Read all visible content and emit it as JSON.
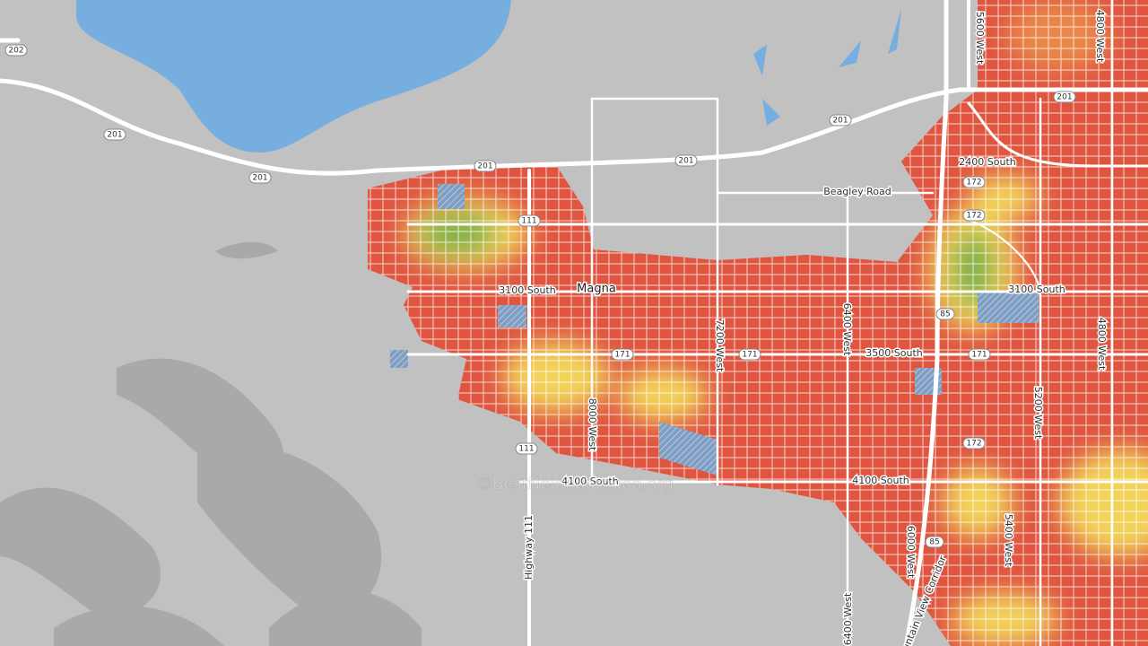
{
  "map": {
    "place_labels": [
      "Magna"
    ],
    "road_labels": [
      "5600 West",
      "4800 West",
      "2400 South",
      "Beagley Road",
      "3100 South",
      "3100 South",
      "3500 South",
      "7200 West",
      "6400 West",
      "8000 West",
      "4800 West",
      "5200 West",
      "4100 South",
      "4100 South",
      "6000 West",
      "5400 West",
      "6400 West",
      "Mountain View Corridor",
      "Highway 111"
    ],
    "route_shields": [
      "202",
      "201",
      "201",
      "201",
      "201",
      "201",
      "201",
      "172",
      "172",
      "111",
      "85",
      "171",
      "171",
      "171",
      "172",
      "111",
      "85"
    ],
    "watermark": "©BestNeighborhood.org"
  }
}
